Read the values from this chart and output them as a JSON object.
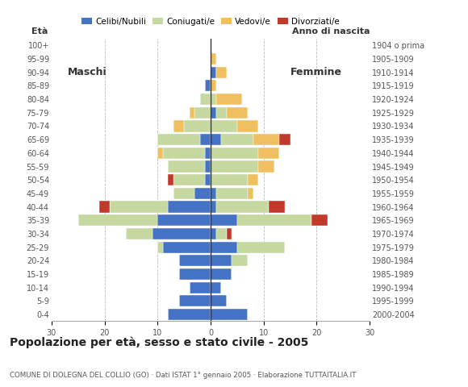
{
  "age_groups": [
    "0-4",
    "5-9",
    "10-14",
    "15-19",
    "20-24",
    "25-29",
    "30-34",
    "35-39",
    "40-44",
    "45-49",
    "50-54",
    "55-59",
    "60-64",
    "65-69",
    "70-74",
    "75-79",
    "80-84",
    "85-89",
    "90-94",
    "95-99",
    "100+"
  ],
  "birth_years": [
    "2000-2004",
    "1995-1999",
    "1990-1994",
    "1985-1989",
    "1980-1984",
    "1975-1979",
    "1970-1974",
    "1965-1969",
    "1960-1964",
    "1955-1959",
    "1950-1954",
    "1945-1949",
    "1940-1944",
    "1935-1939",
    "1930-1934",
    "1925-1929",
    "1920-1924",
    "1915-1919",
    "1910-1914",
    "1905-1909",
    "1904 o prima"
  ],
  "male": {
    "celibe": [
      8,
      6,
      4,
      6,
      6,
      9,
      11,
      10,
      8,
      3,
      1,
      1,
      1,
      2,
      0,
      0,
      0,
      1,
      0,
      0,
      0
    ],
    "coniugato": [
      0,
      0,
      0,
      0,
      0,
      1,
      5,
      15,
      11,
      4,
      6,
      7,
      8,
      8,
      5,
      3,
      2,
      0,
      0,
      0,
      0
    ],
    "vedovo": [
      0,
      0,
      0,
      0,
      0,
      0,
      0,
      0,
      0,
      0,
      0,
      0,
      1,
      0,
      2,
      1,
      0,
      0,
      0,
      0,
      0
    ],
    "divorziato": [
      0,
      0,
      0,
      0,
      0,
      0,
      0,
      0,
      2,
      0,
      1,
      0,
      0,
      0,
      0,
      0,
      0,
      0,
      0,
      0,
      0
    ]
  },
  "female": {
    "nubile": [
      7,
      3,
      2,
      4,
      4,
      5,
      1,
      5,
      1,
      1,
      0,
      0,
      0,
      2,
      0,
      1,
      0,
      0,
      1,
      0,
      0
    ],
    "coniugata": [
      0,
      0,
      0,
      0,
      3,
      9,
      2,
      14,
      10,
      6,
      7,
      9,
      9,
      6,
      5,
      2,
      1,
      0,
      0,
      0,
      0
    ],
    "vedova": [
      0,
      0,
      0,
      0,
      0,
      0,
      0,
      0,
      0,
      1,
      2,
      3,
      4,
      5,
      4,
      4,
      5,
      1,
      2,
      1,
      0
    ],
    "divorziata": [
      0,
      0,
      0,
      0,
      0,
      0,
      1,
      3,
      3,
      0,
      0,
      0,
      0,
      2,
      0,
      0,
      0,
      0,
      0,
      0,
      0
    ]
  },
  "colors": {
    "celibe": "#4472c4",
    "coniugato": "#c5d8a0",
    "vedovo": "#f0c060",
    "divorziato": "#c0392b"
  },
  "title": "Popolazione per età, sesso e stato civile - 2005",
  "subtitle": "COMUNE DI DOLEGNA DEL COLLIO (GO) · Dati ISTAT 1° gennaio 2005 · Elaborazione TUTTAITALIA.IT",
  "xlim": 30,
  "background_color": "#ffffff",
  "grid_color": "#bbbbbb",
  "spine_color": "#aaaaaa"
}
